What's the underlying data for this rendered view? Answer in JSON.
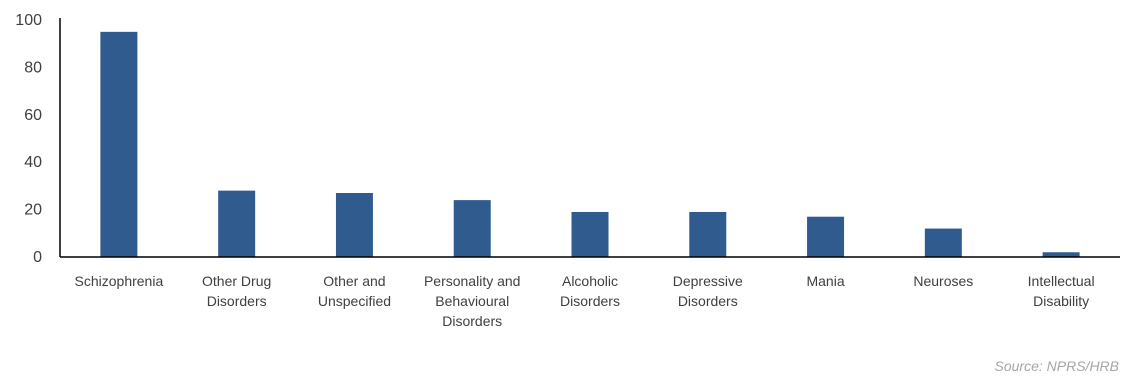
{
  "chart_data": {
    "type": "bar",
    "categories": [
      [
        "Schizophrenia"
      ],
      [
        "Other Drug",
        "Disorders"
      ],
      [
        "Other and",
        "Unspecified"
      ],
      [
        "Personality and",
        "Behavioural",
        "Disorders"
      ],
      [
        "Alcoholic",
        "Disorders"
      ],
      [
        "Depressive",
        "Disorders"
      ],
      [
        "Mania"
      ],
      [
        "Neuroses"
      ],
      [
        "Intellectual",
        "Disability"
      ]
    ],
    "values": [
      95,
      28,
      27,
      24,
      19,
      19,
      17,
      12,
      2
    ],
    "yticks": [
      0,
      20,
      40,
      60,
      80,
      100
    ],
    "ylim": [
      0,
      100
    ],
    "bar_color": "#2f5b8f",
    "grid": false,
    "title": "",
    "xlabel": "",
    "ylabel": ""
  },
  "source": "Source: NPRS/HRB"
}
